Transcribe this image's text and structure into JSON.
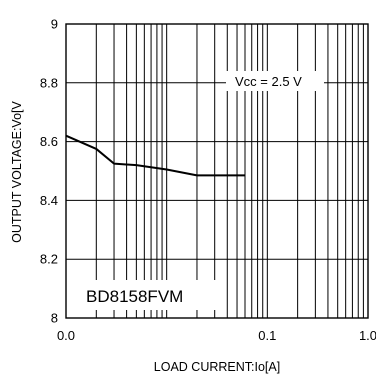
{
  "chart_data": {
    "type": "line",
    "xlabel": "LOAD CURRENT:Io[A]",
    "ylabel": "OUTPUT VOLTAGE:Vo[V",
    "x_scale": "log",
    "xlim": [
      0.001,
      1.0
    ],
    "ylim": [
      8.0,
      9.0
    ],
    "x_ticks": [
      "0.0",
      "0.1",
      "1.0"
    ],
    "y_ticks": [
      "8",
      "8.2",
      "8.4",
      "8.6",
      "8.8",
      "9"
    ],
    "grid": true,
    "annotations": {
      "condition": "Vcc = 2.5 V",
      "part_number": "BD8158FVM"
    },
    "series": [
      {
        "x": [
          0.001,
          0.002,
          0.003,
          0.005,
          0.01,
          0.02,
          0.05,
          0.06
        ],
        "y": [
          8.62,
          8.575,
          8.525,
          8.52,
          8.505,
          8.485,
          8.485,
          8.485
        ]
      }
    ]
  }
}
